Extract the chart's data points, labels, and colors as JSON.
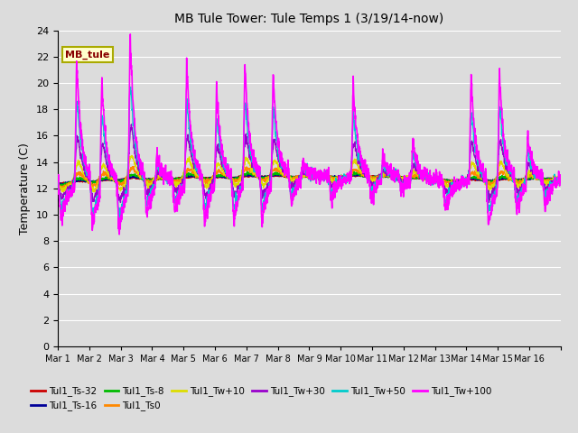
{
  "title": "MB Tule Tower: Tule Temps 1 (3/19/14-now)",
  "ylabel": "Temperature (C)",
  "xlabel": "",
  "ylim": [
    0,
    24
  ],
  "yticks": [
    0,
    2,
    4,
    6,
    8,
    10,
    12,
    14,
    16,
    18,
    20,
    22,
    24
  ],
  "bg_color": "#dcdcdc",
  "plot_bg": "#dcdcdc",
  "grid_color": "#ffffff",
  "series": [
    {
      "label": "Tul1_Ts-32",
      "color": "#cc0000",
      "lw": 1.0
    },
    {
      "label": "Tul1_Ts-16",
      "color": "#000099",
      "lw": 1.0
    },
    {
      "label": "Tul1_Ts-8",
      "color": "#00bb00",
      "lw": 1.0
    },
    {
      "label": "Tul1_Ts0",
      "color": "#ff8800",
      "lw": 1.0
    },
    {
      "label": "Tul1_Tw+10",
      "color": "#dddd00",
      "lw": 1.0
    },
    {
      "label": "Tul1_Tw+30",
      "color": "#9900cc",
      "lw": 1.0
    },
    {
      "label": "Tul1_Tw+50",
      "color": "#00cccc",
      "lw": 1.0
    },
    {
      "label": "Tul1_Tw+100",
      "color": "#ff00ff",
      "lw": 1.2
    }
  ],
  "xtick_labels": [
    "Mar 1",
    "Mar 2",
    "Mar 3",
    "Mar 4",
    "Mar 5",
    "Mar 6",
    "Mar 7",
    "Mar 8",
    "Mar 9",
    "Mar 10",
    "Mar 11",
    "Mar 12",
    "Mar 13",
    "Mar 14",
    "Mar 15",
    "Mar 16"
  ],
  "n_days": 16,
  "pts_per_day": 144,
  "annotation_label": "MB_tule",
  "peak_days": [
    0.6,
    1.4,
    2.3,
    3.15,
    4.1,
    5.05,
    5.95,
    6.85,
    7.8,
    9.4,
    10.35,
    11.3,
    13.15,
    14.05,
    14.95
  ],
  "peak_amps100": [
    9.5,
    8.5,
    12.0,
    2.5,
    9.5,
    7.5,
    9.5,
    8.5,
    1.5,
    7.0,
    2.0,
    3.0,
    8.0,
    9.0,
    4.0
  ],
  "base_temps": [
    12.4,
    12.5,
    12.7,
    12.7,
    12.8,
    12.8,
    12.9,
    12.9,
    12.9,
    12.9,
    12.9,
    12.7,
    12.6,
    12.6,
    12.7,
    12.8
  ]
}
